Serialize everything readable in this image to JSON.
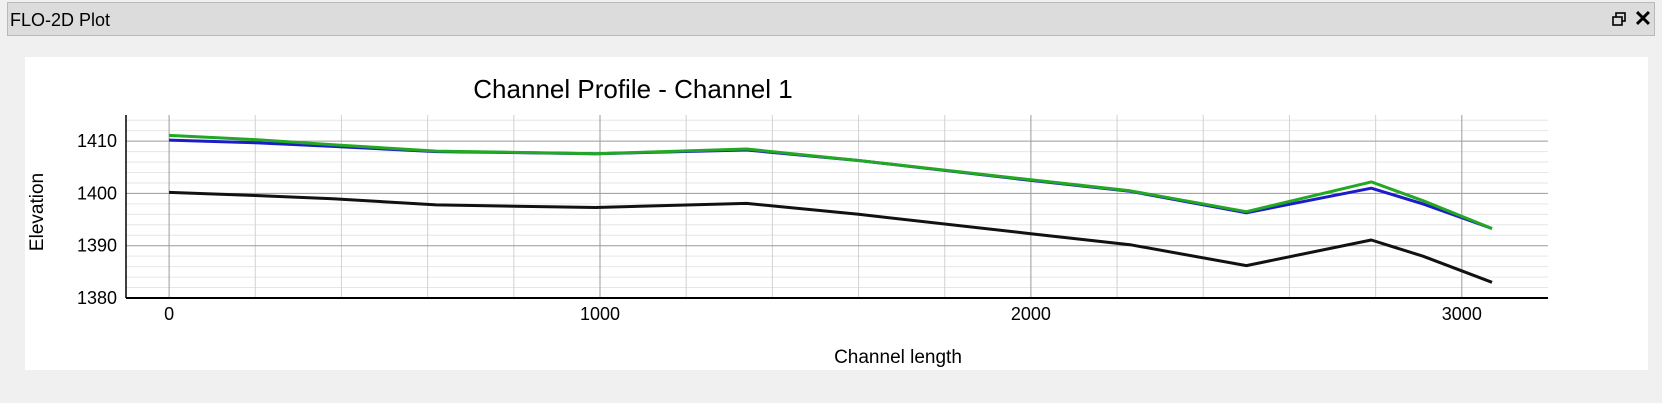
{
  "window": {
    "title": "FLO-2D Plot",
    "restore_icon": "restore-window-icon",
    "close_icon": "close-icon"
  },
  "chart_data": {
    "type": "line",
    "title": "Channel Profile - Channel 1",
    "xlabel": "Channel length",
    "ylabel": "Elevation",
    "xlim": [
      -100,
      3200
    ],
    "ylim": [
      1380,
      1415
    ],
    "x_ticks": [
      0,
      1000,
      2000,
      3000
    ],
    "y_ticks": [
      1380,
      1390,
      1400,
      1410
    ],
    "grid": true,
    "legend": "none",
    "series": [
      {
        "color": "#111111",
        "x": [
          0,
          200,
          380,
          620,
          990,
          1340,
          1600,
          2000,
          2230,
          2500,
          2790,
          2910,
          3070
        ],
        "values": [
          1400.2,
          1399.6,
          1399.0,
          1397.8,
          1397.3,
          1398.1,
          1396.0,
          1392.3,
          1390.2,
          1386.2,
          1391.1,
          1388.0,
          1383.0
        ]
      },
      {
        "color": "#1c1cc8",
        "x": [
          0,
          200,
          380,
          620,
          990,
          1340,
          1600,
          2000,
          2230,
          2500,
          2790,
          2910,
          3070
        ],
        "values": [
          1410.2,
          1409.7,
          1409.0,
          1408.0,
          1407.6,
          1408.3,
          1406.3,
          1402.5,
          1400.4,
          1396.3,
          1401.0,
          1398.0,
          1393.3
        ]
      },
      {
        "color": "#22a822",
        "x": [
          0,
          200,
          380,
          620,
          990,
          1340,
          1600,
          2000,
          2230,
          2500,
          2790,
          2910,
          3070
        ],
        "values": [
          1411.1,
          1410.3,
          1409.3,
          1408.1,
          1407.6,
          1408.5,
          1406.3,
          1402.6,
          1400.5,
          1396.5,
          1402.2,
          1398.6,
          1393.3
        ]
      }
    ]
  }
}
